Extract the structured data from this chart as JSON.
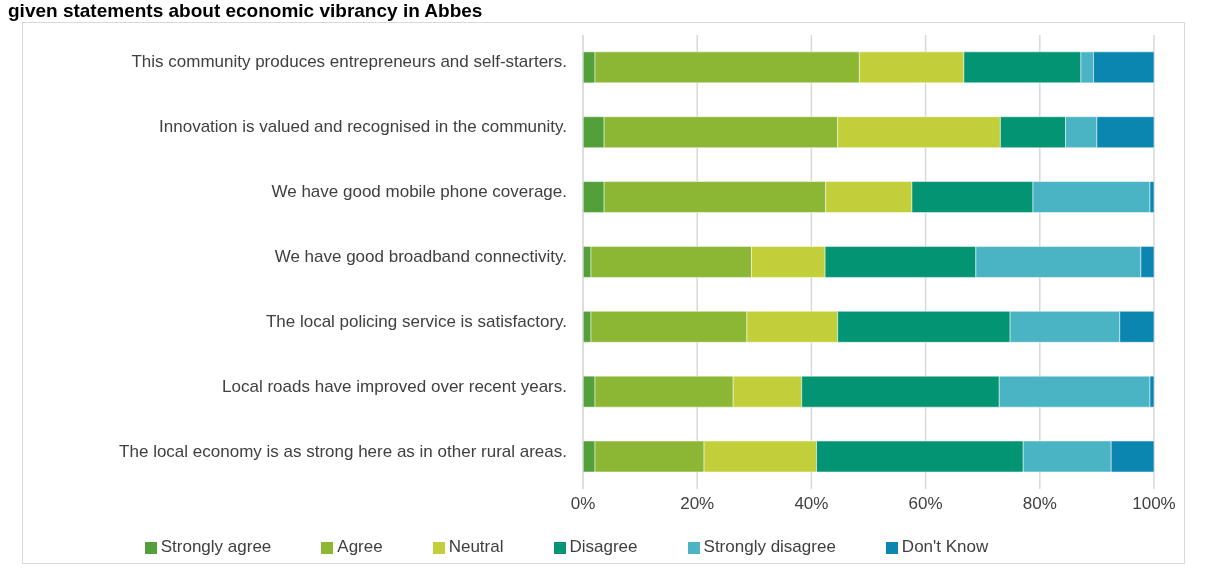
{
  "chart_data": {
    "type": "bar",
    "orientation": "horizontal",
    "stacked": true,
    "title": "given statements about economic vibrancy in Abbes",
    "categories": [
      "This community produces entrepreneurs and self-starters.",
      "Innovation is valued and recognised in the community.",
      "We have good mobile phone coverage.",
      "We have good broadband connectivity.",
      "The local policing service is satisfactory.",
      "Local roads have improved over recent years.",
      "The local economy is as strong here as in other rural areas."
    ],
    "series": [
      {
        "name": "Strongly agree",
        "color": "#53a03b",
        "values": [
          2.1,
          3.7,
          3.7,
          1.4,
          1.4,
          2.1,
          2.1
        ]
      },
      {
        "name": "Agree",
        "color": "#8bb735",
        "values": [
          46.3,
          40.9,
          38.8,
          28.1,
          27.3,
          24.2,
          19.1
        ]
      },
      {
        "name": "Neutral",
        "color": "#c2cf3a",
        "values": [
          18.3,
          28.5,
          15.1,
          12.9,
          15.9,
          12.0,
          19.7
        ]
      },
      {
        "name": "Disagree",
        "color": "#039474",
        "values": [
          20.5,
          11.4,
          21.2,
          26.4,
          30.2,
          34.6,
          36.2
        ]
      },
      {
        "name": "Strongly disagree",
        "color": "#4ab4c4",
        "values": [
          2.2,
          5.5,
          20.5,
          28.9,
          19.2,
          26.4,
          15.4
        ]
      },
      {
        "name": "Don't Know",
        "color": "#0b86b0",
        "values": [
          10.6,
          10.0,
          0.7,
          2.3,
          6.0,
          0.7,
          7.5
        ]
      }
    ],
    "xlim": [
      0,
      100
    ],
    "xticks": [
      {
        "value": 0,
        "label": "0%"
      },
      {
        "value": 20,
        "label": "20%"
      },
      {
        "value": 40,
        "label": "40%"
      },
      {
        "value": 60,
        "label": "60%"
      },
      {
        "value": 80,
        "label": "80%"
      },
      {
        "value": 100,
        "label": "100%"
      }
    ],
    "grid": "x",
    "legend": "bottom"
  }
}
